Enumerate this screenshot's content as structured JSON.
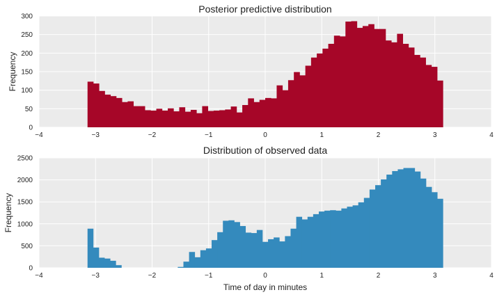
{
  "chart_data": [
    {
      "type": "bar",
      "title": "Posterior predictive distribution",
      "xlabel": "",
      "ylabel": "Frequency",
      "xlim": [
        -4,
        4
      ],
      "ylim": [
        0,
        300
      ],
      "xticks": [
        -4,
        -3,
        -2,
        -1,
        0,
        1,
        2,
        3,
        4
      ],
      "yticks": [
        0,
        50,
        100,
        150,
        200,
        250,
        300
      ],
      "grid": true,
      "color": "#A60628",
      "bin_start": -3.1416,
      "bin_end": 3.1416,
      "values": [
        123,
        118,
        98,
        88,
        84,
        79,
        68,
        70,
        57,
        57,
        46,
        45,
        50,
        45,
        51,
        43,
        54,
        42,
        47,
        38,
        57,
        44,
        45,
        46,
        48,
        56,
        40,
        60,
        78,
        68,
        74,
        79,
        78,
        113,
        100,
        127,
        149,
        140,
        166,
        188,
        199,
        212,
        225,
        247,
        245,
        285,
        286,
        268,
        273,
        278,
        265,
        265,
        234,
        229,
        252,
        225,
        215,
        195,
        188,
        168,
        163,
        126
      ]
    },
    {
      "type": "bar",
      "title": "Distribution of observed data",
      "xlabel": "Time of day in minutes",
      "ylabel": "Frequency",
      "xlim": [
        -4,
        4
      ],
      "ylim": [
        0,
        2500
      ],
      "xticks": [
        -4,
        -3,
        -2,
        -1,
        0,
        1,
        2,
        3,
        4
      ],
      "yticks": [
        0,
        500,
        1000,
        1500,
        2000,
        2500
      ],
      "grid": true,
      "color": "#348ABD",
      "bin_start": -3.1416,
      "bin_end": 3.1416,
      "values": [
        890,
        460,
        230,
        210,
        160,
        60,
        0,
        0,
        0,
        0,
        0,
        0,
        0,
        0,
        0,
        0,
        20,
        140,
        360,
        240,
        400,
        440,
        630,
        810,
        1070,
        1080,
        1040,
        950,
        800,
        790,
        860,
        590,
        650,
        690,
        600,
        720,
        890,
        1160,
        1100,
        1160,
        1220,
        1280,
        1300,
        1310,
        1300,
        1350,
        1390,
        1420,
        1490,
        1590,
        1780,
        1880,
        2010,
        2120,
        2200,
        2240,
        2270,
        2270,
        2190,
        2030,
        1840,
        1720,
        1570
      ]
    }
  ]
}
